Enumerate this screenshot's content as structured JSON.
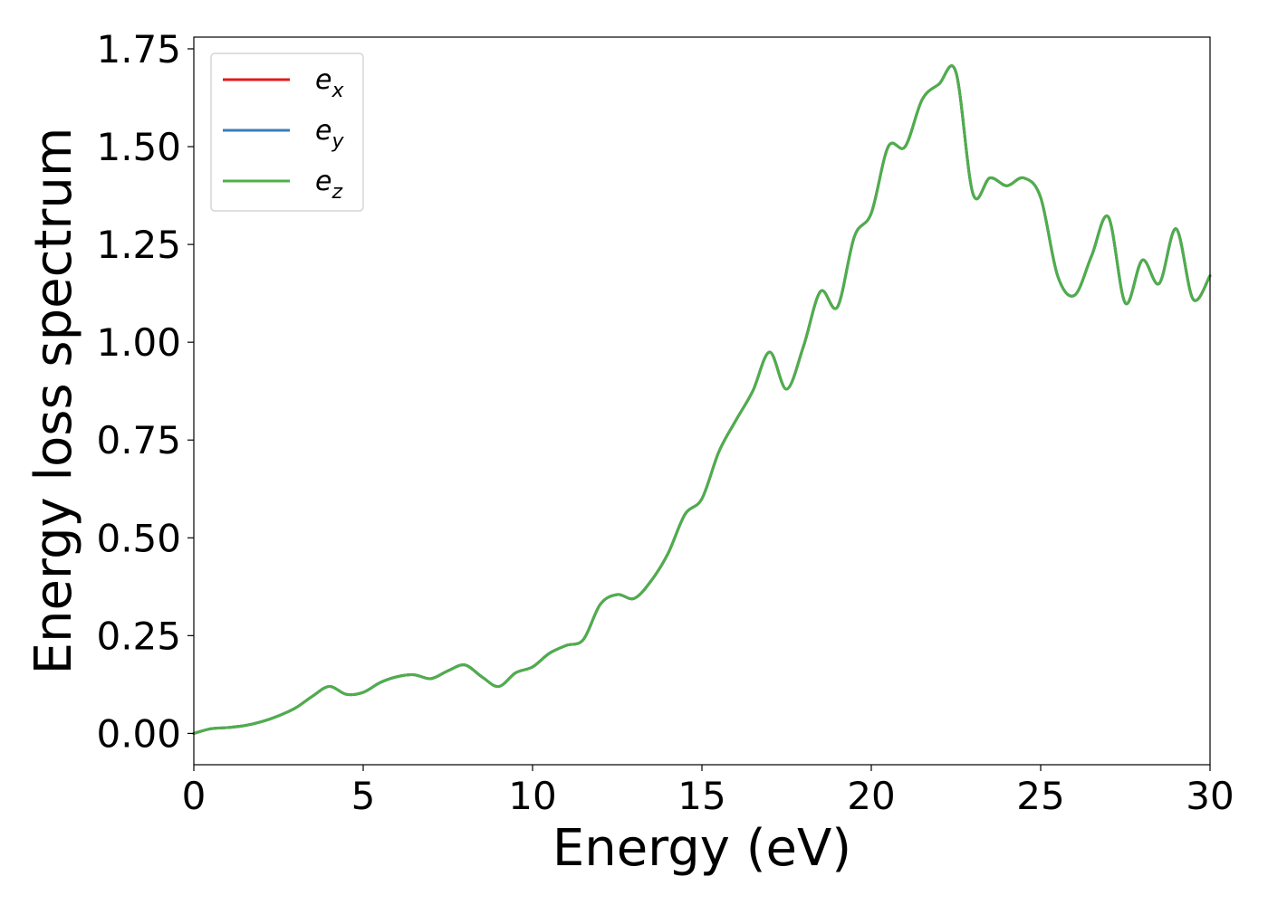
{
  "chart_data": {
    "type": "line",
    "xlabel": "Energy (eV)",
    "ylabel": "Energy loss spectrum",
    "xlim": [
      0,
      30
    ],
    "ylim": [
      -0.08,
      1.78
    ],
    "xticks": [
      {
        "value": 0,
        "label": "0"
      },
      {
        "value": 5,
        "label": "5"
      },
      {
        "value": 10,
        "label": "10"
      },
      {
        "value": 15,
        "label": "15"
      },
      {
        "value": 20,
        "label": "20"
      },
      {
        "value": 25,
        "label": "25"
      },
      {
        "value": 30,
        "label": "30"
      }
    ],
    "yticks": [
      {
        "value": 0.0,
        "label": "0.00"
      },
      {
        "value": 0.25,
        "label": "0.25"
      },
      {
        "value": 0.5,
        "label": "0.50"
      },
      {
        "value": 0.75,
        "label": "0.75"
      },
      {
        "value": 1.0,
        "label": "1.00"
      },
      {
        "value": 1.25,
        "label": "1.25"
      },
      {
        "value": 1.5,
        "label": "1.50"
      },
      {
        "value": 1.75,
        "label": "1.75"
      }
    ],
    "grid": false,
    "legend_position": "top-left",
    "x": [
      0,
      0.5,
      1.0,
      1.5,
      2.0,
      2.5,
      3.0,
      3.5,
      4.0,
      4.5,
      5.0,
      5.5,
      6.0,
      6.5,
      7.0,
      7.5,
      8.0,
      8.5,
      9.0,
      9.5,
      10.0,
      10.5,
      11.0,
      11.5,
      12.0,
      12.5,
      13.0,
      13.5,
      14.0,
      14.5,
      15.0,
      15.5,
      16.0,
      16.5,
      17.0,
      17.5,
      18.0,
      18.5,
      19.0,
      19.5,
      20.0,
      20.5,
      21.0,
      21.5,
      22.0,
      22.5,
      23.0,
      23.5,
      24.0,
      24.5,
      25.0,
      25.5,
      26.0,
      26.5,
      27.0,
      27.5,
      28.0,
      28.5,
      29.0,
      29.5,
      30.0
    ],
    "series": [
      {
        "name": "e_x",
        "color": "#e41a1c",
        "values": [
          0.0,
          0.012,
          0.015,
          0.02,
          0.03,
          0.045,
          0.065,
          0.095,
          0.12,
          0.1,
          0.105,
          0.13,
          0.145,
          0.15,
          0.14,
          0.16,
          0.175,
          0.145,
          0.12,
          0.155,
          0.17,
          0.205,
          0.225,
          0.24,
          0.33,
          0.355,
          0.345,
          0.39,
          0.46,
          0.56,
          0.6,
          0.72,
          0.8,
          0.875,
          0.975,
          0.88,
          0.99,
          1.13,
          1.09,
          1.27,
          1.33,
          1.5,
          1.5,
          1.62,
          1.66,
          1.69,
          1.38,
          1.42,
          1.4,
          1.42,
          1.37,
          1.17,
          1.12,
          1.22,
          1.32,
          1.1,
          1.21,
          1.15,
          1.29,
          1.11,
          1.17
        ]
      },
      {
        "name": "e_y",
        "color": "#377eb8",
        "values": [
          0.0,
          0.012,
          0.015,
          0.02,
          0.03,
          0.045,
          0.065,
          0.095,
          0.12,
          0.1,
          0.105,
          0.13,
          0.145,
          0.15,
          0.14,
          0.16,
          0.175,
          0.145,
          0.12,
          0.155,
          0.17,
          0.205,
          0.225,
          0.24,
          0.33,
          0.355,
          0.345,
          0.39,
          0.46,
          0.56,
          0.6,
          0.72,
          0.8,
          0.875,
          0.975,
          0.88,
          0.99,
          1.13,
          1.09,
          1.27,
          1.33,
          1.5,
          1.5,
          1.62,
          1.66,
          1.69,
          1.38,
          1.42,
          1.4,
          1.42,
          1.37,
          1.17,
          1.12,
          1.22,
          1.32,
          1.1,
          1.21,
          1.15,
          1.29,
          1.11,
          1.17
        ]
      },
      {
        "name": "e_z",
        "color": "#4daf4a",
        "values": [
          0.0,
          0.012,
          0.015,
          0.02,
          0.03,
          0.045,
          0.065,
          0.095,
          0.12,
          0.1,
          0.105,
          0.13,
          0.145,
          0.15,
          0.14,
          0.16,
          0.175,
          0.145,
          0.12,
          0.155,
          0.17,
          0.205,
          0.225,
          0.24,
          0.33,
          0.355,
          0.345,
          0.39,
          0.46,
          0.56,
          0.6,
          0.72,
          0.8,
          0.875,
          0.975,
          0.88,
          0.99,
          1.13,
          1.09,
          1.27,
          1.33,
          1.5,
          1.5,
          1.62,
          1.66,
          1.69,
          1.38,
          1.42,
          1.4,
          1.42,
          1.37,
          1.17,
          1.12,
          1.22,
          1.32,
          1.1,
          1.21,
          1.15,
          1.29,
          1.11,
          1.17
        ]
      }
    ],
    "legend": [
      {
        "base": "e",
        "sub": "x",
        "color": "#e41a1c"
      },
      {
        "base": "e",
        "sub": "y",
        "color": "#377eb8"
      },
      {
        "base": "e",
        "sub": "z",
        "color": "#4daf4a"
      }
    ]
  }
}
